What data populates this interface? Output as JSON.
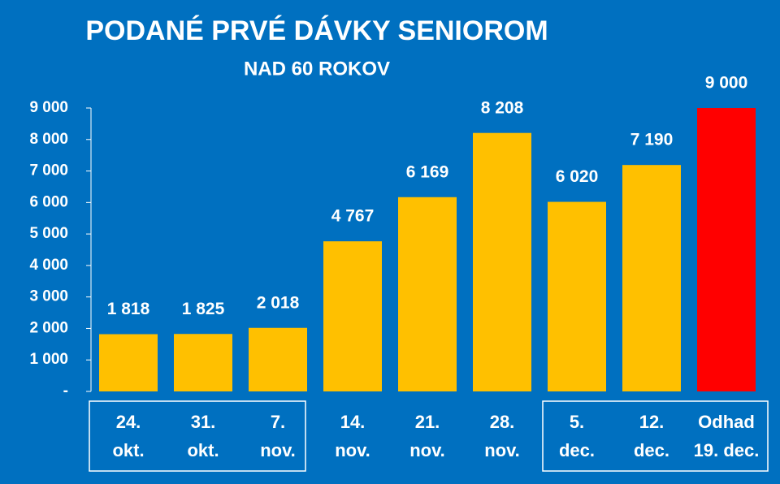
{
  "chart_data": {
    "type": "bar",
    "title": "PODANÉ PRVÉ DÁVKY SENIOROM",
    "subtitle": "NAD 60 ROKOV",
    "categories": [
      [
        "24.",
        "okt."
      ],
      [
        "31.",
        "okt."
      ],
      [
        "7.",
        "nov."
      ],
      [
        "14.",
        "nov."
      ],
      [
        "21.",
        "nov."
      ],
      [
        "28.",
        "nov."
      ],
      [
        "5.",
        "dec."
      ],
      [
        "12.",
        "dec."
      ],
      [
        "Odhad",
        "19. dec."
      ]
    ],
    "values": [
      1818,
      1825,
      2018,
      4767,
      6169,
      8208,
      6020,
      7190,
      9000
    ],
    "value_labels": [
      "1 818",
      "1 825",
      "2 018",
      "4 767",
      "6 169",
      "8 208",
      "6 020",
      "7 190",
      "9 000"
    ],
    "colors": [
      "#FFC000",
      "#FFC000",
      "#FFC000",
      "#FFC000",
      "#FFC000",
      "#FFC000",
      "#FFC000",
      "#FFC000",
      "#FF0000"
    ],
    "ylim": [
      0,
      9000
    ],
    "yticks": [
      {
        "value": 0,
        "label": "-"
      },
      {
        "value": 1000,
        "label": "1 000"
      },
      {
        "value": 2000,
        "label": "2 000"
      },
      {
        "value": 3000,
        "label": "3 000"
      },
      {
        "value": 4000,
        "label": "4 000"
      },
      {
        "value": 5000,
        "label": "5 000"
      },
      {
        "value": 6000,
        "label": "6 000"
      },
      {
        "value": 7000,
        "label": "7 000"
      },
      {
        "value": 8000,
        "label": "8 000"
      },
      {
        "value": 9000,
        "label": "9 000"
      }
    ]
  }
}
